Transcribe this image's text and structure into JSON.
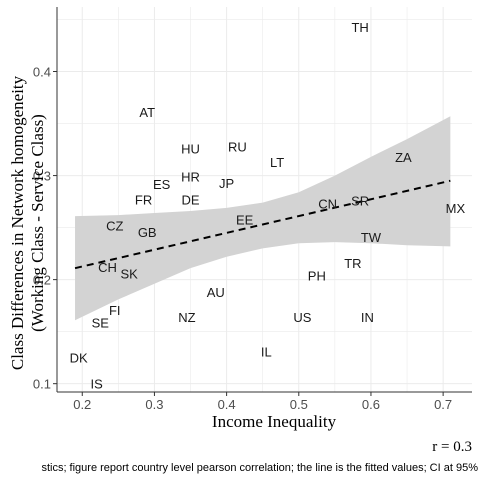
{
  "chart_data": {
    "type": "scatter",
    "xlabel": "Income Inequality",
    "ylabel_line1": "Class Differences in Network homogeneity",
    "ylabel_line2": "(Working Class - Service Class)",
    "xlim": [
      0.165,
      0.74
    ],
    "ylim": [
      0.092,
      0.462
    ],
    "xticks": [
      0.2,
      0.3,
      0.4,
      0.5,
      0.6,
      0.7
    ],
    "xtick_labels": [
      "0.2",
      "0.3",
      "0.4",
      "0.5",
      "0.6",
      "0.7"
    ],
    "yticks": [
      0.1,
      0.2,
      0.3,
      0.4
    ],
    "ytick_labels": [
      "0.1",
      "0.2",
      "0.3",
      "0.4"
    ],
    "grid": true,
    "correlation_label": "r =  0.3",
    "caption": "stics; figure report country level pearson correlation; the line is the fitted values; CI at 95%",
    "points": [
      {
        "label": "TH",
        "x": 0.585,
        "y": 0.443
      },
      {
        "label": "AT",
        "x": 0.29,
        "y": 0.361
      },
      {
        "label": "HU",
        "x": 0.35,
        "y": 0.326
      },
      {
        "label": "RU",
        "x": 0.415,
        "y": 0.328
      },
      {
        "label": "LT",
        "x": 0.47,
        "y": 0.313
      },
      {
        "label": "ZA",
        "x": 0.645,
        "y": 0.318
      },
      {
        "label": "HR",
        "x": 0.35,
        "y": 0.299
      },
      {
        "label": "ES",
        "x": 0.31,
        "y": 0.292
      },
      {
        "label": "JP",
        "x": 0.4,
        "y": 0.293
      },
      {
        "label": "FR",
        "x": 0.285,
        "y": 0.277
      },
      {
        "label": "DE",
        "x": 0.35,
        "y": 0.277
      },
      {
        "label": "CN",
        "x": 0.54,
        "y": 0.273
      },
      {
        "label": "SR",
        "x": 0.585,
        "y": 0.276
      },
      {
        "label": "MX",
        "x": 0.717,
        "y": 0.269
      },
      {
        "label": "EE",
        "x": 0.425,
        "y": 0.258
      },
      {
        "label": "CZ",
        "x": 0.245,
        "y": 0.252
      },
      {
        "label": "GB",
        "x": 0.29,
        "y": 0.246
      },
      {
        "label": "TW",
        "x": 0.6,
        "y": 0.241
      },
      {
        "label": "CH",
        "x": 0.235,
        "y": 0.212
      },
      {
        "label": "TR",
        "x": 0.575,
        "y": 0.216
      },
      {
        "label": "SK",
        "x": 0.265,
        "y": 0.206
      },
      {
        "label": "PH",
        "x": 0.525,
        "y": 0.204
      },
      {
        "label": "AU",
        "x": 0.385,
        "y": 0.188
      },
      {
        "label": "FI",
        "x": 0.245,
        "y": 0.171
      },
      {
        "label": "SE",
        "x": 0.225,
        "y": 0.159
      },
      {
        "label": "NZ",
        "x": 0.345,
        "y": 0.164
      },
      {
        "label": "US",
        "x": 0.505,
        "y": 0.164
      },
      {
        "label": "IN",
        "x": 0.595,
        "y": 0.164
      },
      {
        "label": "IL",
        "x": 0.455,
        "y": 0.131
      },
      {
        "label": "DK",
        "x": 0.195,
        "y": 0.125
      },
      {
        "label": "IS",
        "x": 0.22,
        "y": 0.1
      }
    ],
    "fit": {
      "x": [
        0.19,
        0.71
      ],
      "y": [
        0.211,
        0.295
      ]
    },
    "ci_band": {
      "x": [
        0.19,
        0.25,
        0.3,
        0.35,
        0.4,
        0.45,
        0.5,
        0.55,
        0.6,
        0.65,
        0.71
      ],
      "lower": [
        0.161,
        0.181,
        0.196,
        0.211,
        0.222,
        0.23,
        0.235,
        0.236,
        0.235,
        0.233,
        0.232
      ],
      "upper": [
        0.261,
        0.262,
        0.264,
        0.266,
        0.269,
        0.274,
        0.284,
        0.3,
        0.318,
        0.335,
        0.357
      ]
    },
    "colors": {
      "band": "#d3d3d3",
      "grid": "#ebebeb",
      "fit": "#000000",
      "axis": "#333333"
    }
  }
}
